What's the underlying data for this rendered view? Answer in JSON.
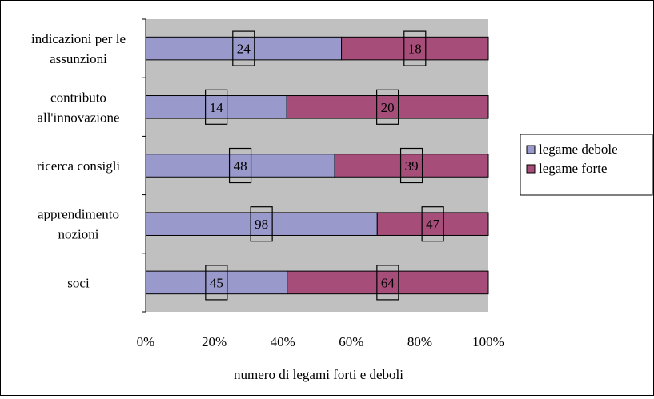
{
  "chart_data": {
    "type": "bar",
    "orientation": "horizontal",
    "stacked": "percent",
    "title": "",
    "xlabel": "numero di legami forti e deboli",
    "ylabel": "",
    "xlim": [
      0,
      100
    ],
    "x_ticks": [
      "0%",
      "20%",
      "40%",
      "60%",
      "80%",
      "100%"
    ],
    "categories": [
      [
        "indicazioni per le",
        "assunzioni"
      ],
      [
        "contributo",
        "all'innovazione"
      ],
      [
        "ricerca consigli"
      ],
      [
        "apprendimento",
        "nozioni"
      ],
      [
        "soci"
      ]
    ],
    "series": [
      {
        "name": "legame debole",
        "values": [
          24,
          14,
          48,
          98,
          45
        ],
        "labels": [
          "24",
          "14",
          "48",
          "98",
          "45"
        ]
      },
      {
        "name": "legame forte",
        "values": [
          18,
          20,
          39,
          47,
          64
        ],
        "labels": [
          "18",
          "20",
          "39",
          "47",
          "64"
        ]
      }
    ],
    "grid": false,
    "legend_position": "right",
    "colors": {
      "plot_bg": "#c0c0c0",
      "legame debole": "#9999cc",
      "legame forte": "#a64d79"
    }
  }
}
